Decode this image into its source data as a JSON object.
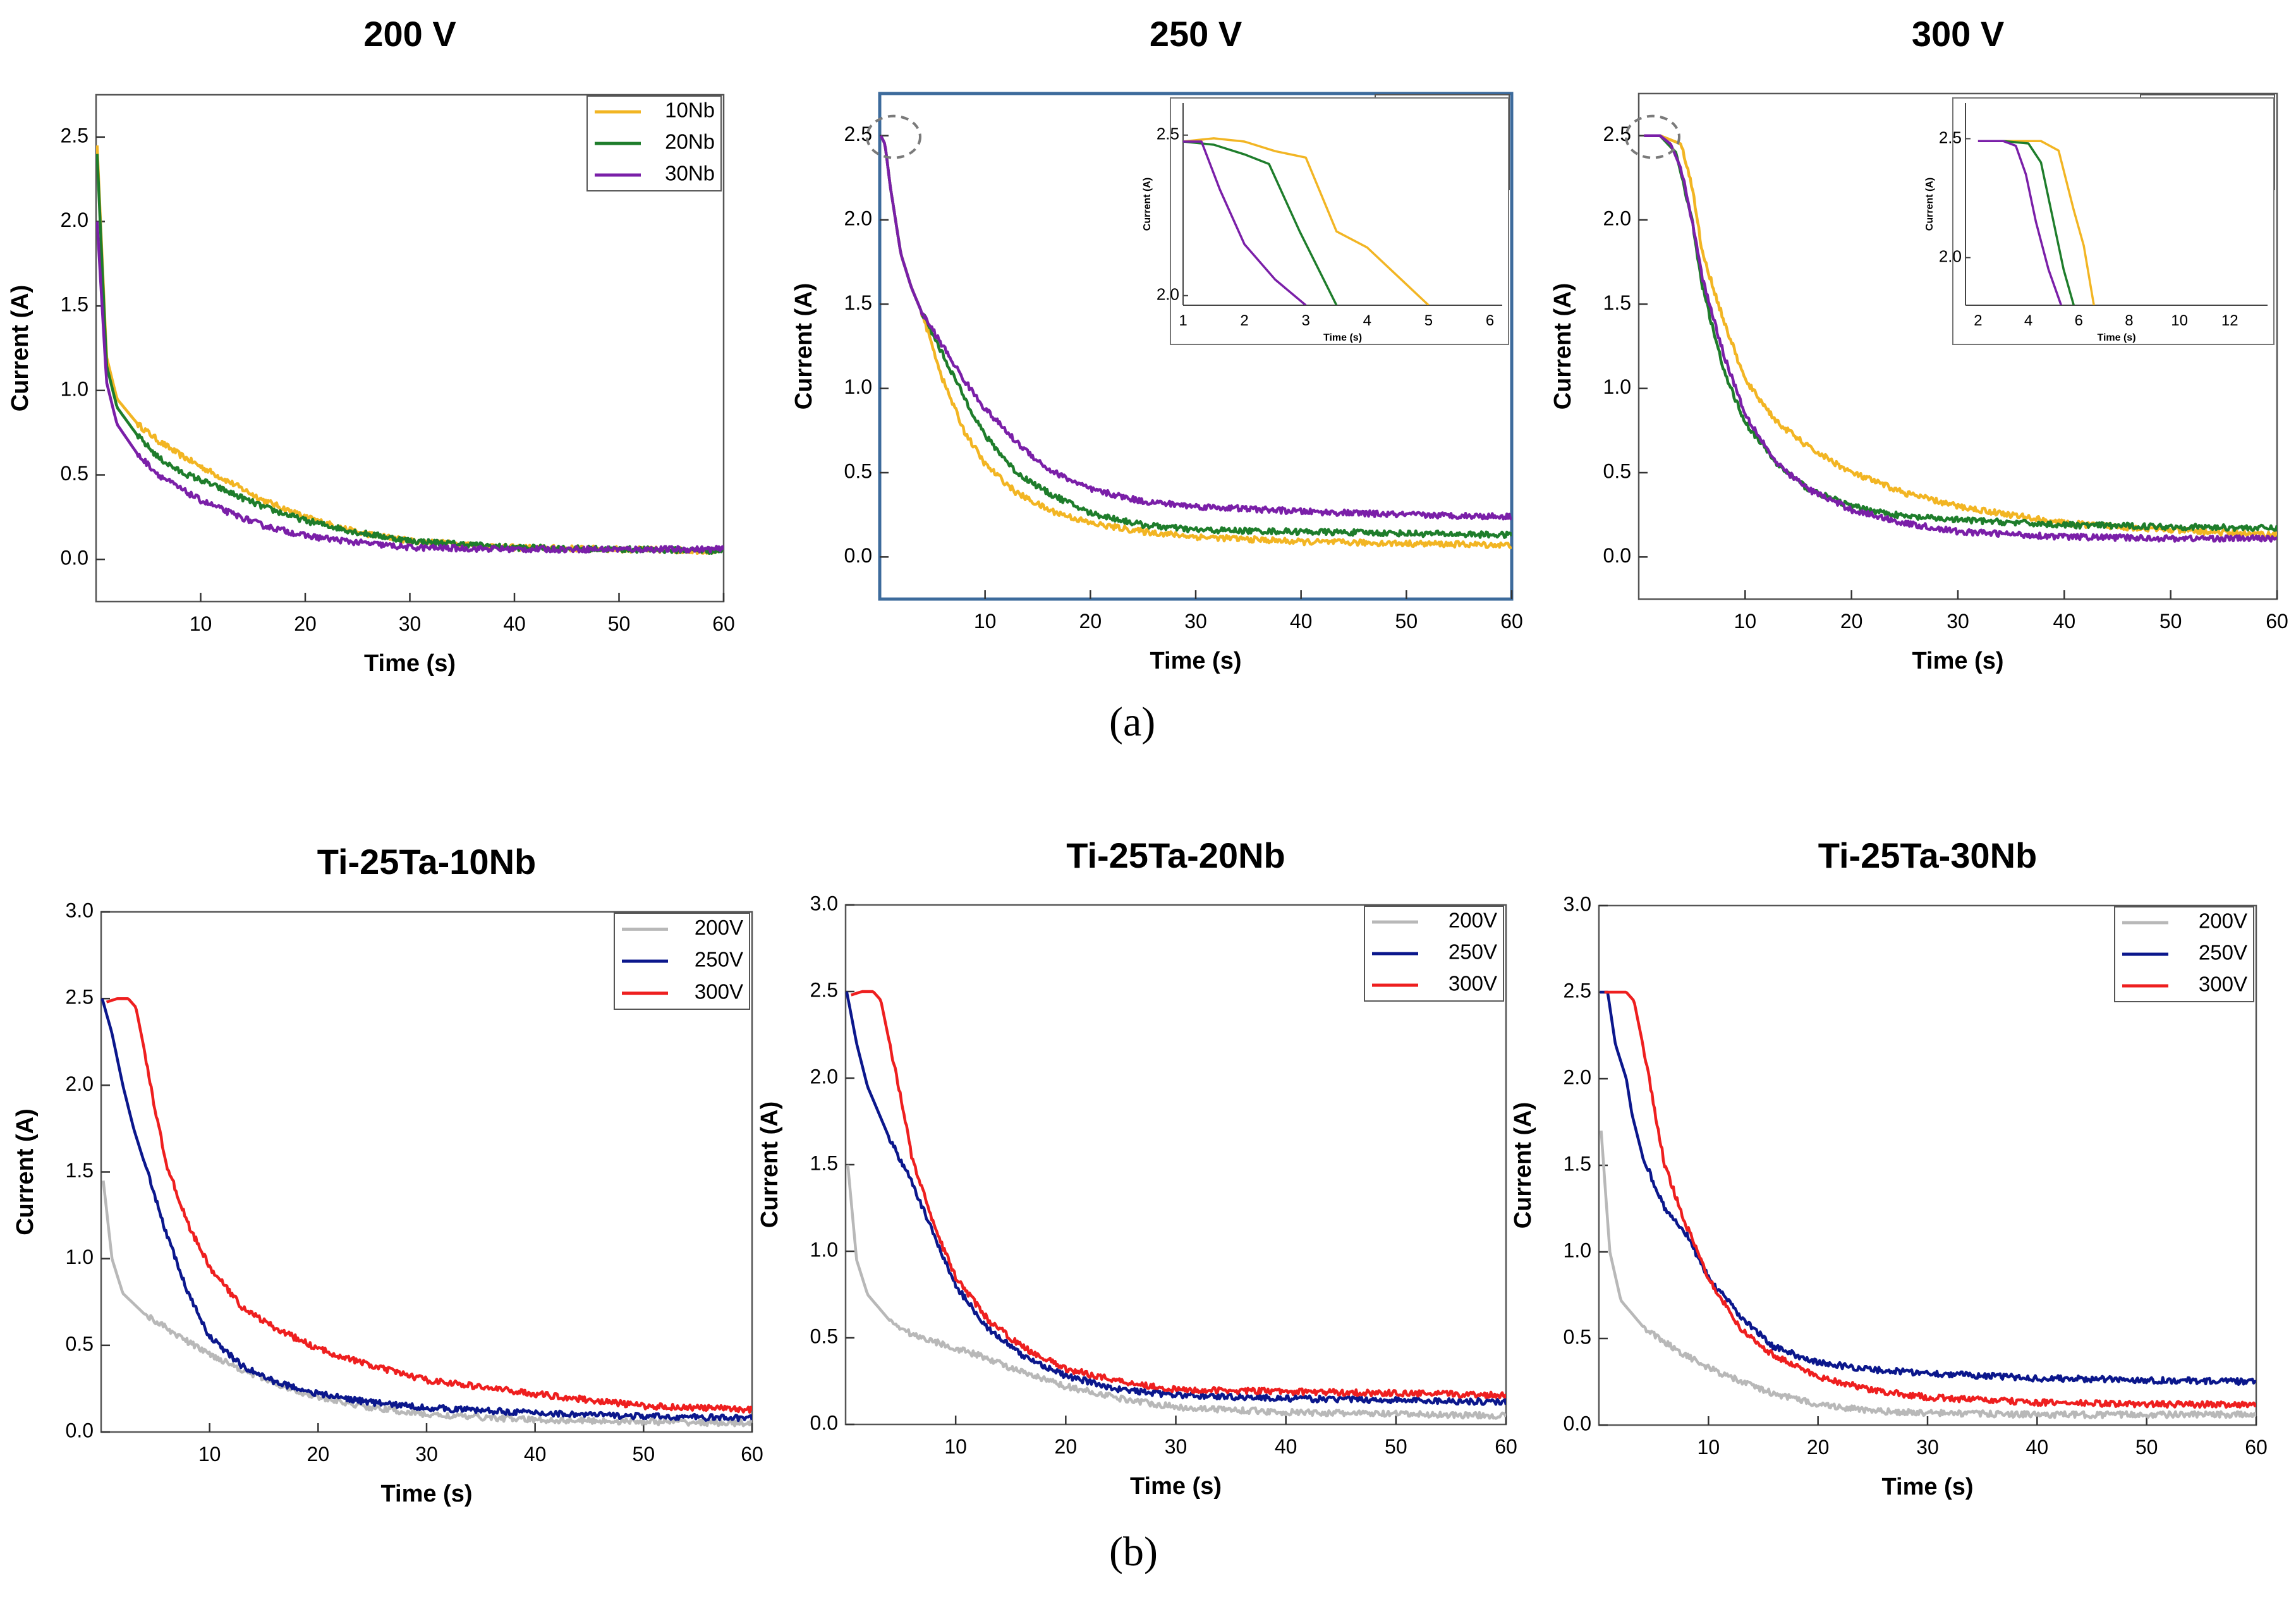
{
  "figure": {
    "label_a": "(a)",
    "label_b": "(b)"
  },
  "colors": {
    "10Nb": "#f2b523",
    "20Nb": "#1e7d2b",
    "30Nb": "#7a1fa8",
    "200V": "#b8b8b8",
    "250V": "#0b178c",
    "300V": "#ee1f1f",
    "frame": "#3d6b9c",
    "highlight": "#7a7a7a"
  },
  "chart_data": [
    {
      "type": "line",
      "panel": "a",
      "title": "200 V",
      "xlabel": "Time (s)",
      "ylabel": "Current (A)",
      "xlim": [
        0,
        60
      ],
      "ylim": [
        -0.25,
        2.75
      ],
      "xticks": [
        10,
        20,
        30,
        40,
        50,
        60
      ],
      "yticks": [
        0,
        0.5,
        1,
        1.5,
        2,
        2.5
      ],
      "ytick_labels": [
        "0.0",
        "0.5",
        "1.0",
        "1.5",
        "2.0",
        "2.5"
      ],
      "legend_position": "top-right",
      "legend_bold": false,
      "series": [
        {
          "name": "10Nb",
          "color_key": "10Nb",
          "x": [
            0.1,
            1,
            2,
            4,
            6,
            8,
            10,
            13,
            16,
            20,
            25,
            30,
            40,
            50,
            60
          ],
          "y": [
            2.45,
            1.2,
            0.95,
            0.8,
            0.7,
            0.62,
            0.55,
            0.45,
            0.35,
            0.25,
            0.16,
            0.11,
            0.07,
            0.06,
            0.05
          ]
        },
        {
          "name": "20Nb",
          "color_key": "20Nb",
          "x": [
            0.1,
            1,
            2,
            4,
            6,
            8,
            10,
            13,
            16,
            20,
            25,
            30,
            40,
            50,
            60
          ],
          "y": [
            2.4,
            1.15,
            0.9,
            0.73,
            0.6,
            0.52,
            0.47,
            0.39,
            0.31,
            0.23,
            0.16,
            0.11,
            0.07,
            0.06,
            0.05
          ]
        },
        {
          "name": "30Nb",
          "color_key": "30Nb",
          "x": [
            0.1,
            1,
            2,
            4,
            6,
            8,
            10,
            13,
            16,
            20,
            25,
            30,
            40,
            50,
            60
          ],
          "y": [
            2.0,
            1.05,
            0.8,
            0.62,
            0.5,
            0.42,
            0.35,
            0.27,
            0.2,
            0.14,
            0.1,
            0.07,
            0.06,
            0.06,
            0.06
          ]
        }
      ]
    },
    {
      "type": "line",
      "panel": "a",
      "title": "250 V",
      "xlabel": "Time (s)",
      "ylabel": "Current (A)",
      "xlim": [
        0,
        60
      ],
      "ylim": [
        -0.25,
        2.75
      ],
      "xticks": [
        10,
        20,
        30,
        40,
        50,
        60
      ],
      "yticks": [
        0,
        0.5,
        1,
        1.5,
        2,
        2.5
      ],
      "ytick_labels": [
        "0.0",
        "0.5",
        "1.0",
        "1.5",
        "2.0",
        "2.5"
      ],
      "legend_position": "top-right",
      "legend_bold": true,
      "framed": true,
      "series": [
        {
          "name": "10Nb",
          "color_key": "10Nb",
          "x": [
            0.1,
            0.5,
            1,
            2,
            3,
            4,
            6,
            8,
            10,
            13,
            16,
            20,
            25,
            30,
            40,
            50,
            60
          ],
          "y": [
            2.5,
            2.45,
            2.2,
            1.8,
            1.6,
            1.45,
            1.05,
            0.75,
            0.55,
            0.38,
            0.28,
            0.2,
            0.15,
            0.12,
            0.09,
            0.08,
            0.07
          ]
        },
        {
          "name": "20Nb",
          "color_key": "20Nb",
          "x": [
            0.1,
            0.5,
            1,
            2,
            3,
            4,
            6,
            8,
            10,
            13,
            16,
            20,
            25,
            30,
            40,
            50,
            60
          ],
          "y": [
            2.5,
            2.45,
            2.2,
            1.8,
            1.6,
            1.45,
            1.2,
            0.95,
            0.72,
            0.5,
            0.38,
            0.26,
            0.19,
            0.16,
            0.15,
            0.14,
            0.13
          ]
        },
        {
          "name": "30Nb",
          "color_key": "30Nb",
          "x": [
            0.1,
            0.5,
            1,
            2,
            3,
            4,
            6,
            8,
            10,
            13,
            16,
            20,
            25,
            30,
            40,
            50,
            60
          ],
          "y": [
            2.5,
            2.45,
            2.2,
            1.8,
            1.6,
            1.45,
            1.25,
            1.05,
            0.88,
            0.68,
            0.52,
            0.4,
            0.33,
            0.3,
            0.27,
            0.25,
            0.24
          ]
        }
      ],
      "inset": {
        "xlabel": "Time (s)",
        "ylabel": "Current (A)",
        "xlim": [
          1,
          6.2
        ],
        "ylim": [
          1.97,
          2.6
        ],
        "xticks": [
          1,
          2,
          3,
          4,
          5,
          6
        ],
        "yticks": [
          2.0,
          2.5
        ],
        "ytick_labels": [
          "2.0",
          "2.5"
        ],
        "series": [
          {
            "name": "10Nb",
            "color_key": "10Nb",
            "x": [
              1,
              1.5,
              2,
              2.5,
              3,
              3.5,
              4,
              4.5,
              5
            ],
            "y": [
              2.48,
              2.49,
              2.48,
              2.45,
              2.43,
              2.2,
              2.15,
              2.06,
              1.97
            ]
          },
          {
            "name": "20Nb",
            "color_key": "20Nb",
            "x": [
              1,
              1.5,
              2,
              2.4,
              2.9,
              3.5
            ],
            "y": [
              2.48,
              2.47,
              2.44,
              2.41,
              2.2,
              1.97
            ]
          },
          {
            "name": "30Nb",
            "color_key": "30Nb",
            "x": [
              1,
              1.3,
              1.6,
              2,
              2.5,
              3
            ],
            "y": [
              2.48,
              2.48,
              2.33,
              2.16,
              2.05,
              1.97
            ]
          }
        ]
      }
    },
    {
      "type": "line",
      "panel": "a",
      "title": "300 V",
      "xlabel": "Time (s)",
      "ylabel": "Current (A)",
      "xlim": [
        0,
        60
      ],
      "ylim": [
        -0.25,
        2.75
      ],
      "xticks": [
        10,
        20,
        30,
        40,
        50,
        60
      ],
      "yticks": [
        0,
        0.5,
        1,
        1.5,
        2,
        2.5
      ],
      "ytick_labels": [
        "0.0",
        "0.5",
        "1.0",
        "1.5",
        "2.0",
        "2.5"
      ],
      "legend_position": "top-right",
      "legend_bold": false,
      "series": [
        {
          "name": "10Nb",
          "color_key": "10Nb",
          "x": [
            0.5,
            2,
            4,
            5,
            6,
            8,
            10,
            13,
            16,
            20,
            25,
            30,
            40,
            50,
            60
          ],
          "y": [
            2.5,
            2.5,
            2.45,
            2.2,
            1.8,
            1.4,
            1.05,
            0.8,
            0.65,
            0.5,
            0.38,
            0.3,
            0.2,
            0.16,
            0.13
          ]
        },
        {
          "name": "20Nb",
          "color_key": "20Nb",
          "x": [
            0.5,
            2,
            3.5,
            5,
            6,
            8,
            10,
            13,
            16,
            20,
            25,
            30,
            40,
            50,
            60
          ],
          "y": [
            2.5,
            2.5,
            2.4,
            2.0,
            1.6,
            1.1,
            0.8,
            0.55,
            0.4,
            0.3,
            0.24,
            0.22,
            0.19,
            0.18,
            0.17
          ]
        },
        {
          "name": "30Nb",
          "color_key": "30Nb",
          "x": [
            0.5,
            2,
            3,
            4,
            5,
            6,
            8,
            10,
            13,
            16,
            20,
            25,
            30,
            40,
            50,
            60
          ],
          "y": [
            2.5,
            2.5,
            2.45,
            2.3,
            2.0,
            1.65,
            1.2,
            0.85,
            0.55,
            0.4,
            0.28,
            0.2,
            0.15,
            0.12,
            0.11,
            0.11
          ]
        }
      ],
      "inset": {
        "xlabel": "Time (s)",
        "ylabel": "Current (A)",
        "xlim": [
          1.5,
          13.5
        ],
        "ylim": [
          1.8,
          2.65
        ],
        "xticks": [
          2,
          4,
          6,
          8,
          10,
          12
        ],
        "yticks": [
          2.0,
          2.5
        ],
        "ytick_labels": [
          "2.0",
          "2.5"
        ],
        "series": [
          {
            "name": "10Nb",
            "color_key": "10Nb",
            "x": [
              2,
              3,
              4.5,
              5.2,
              5.8,
              6.2,
              6.6
            ],
            "y": [
              2.49,
              2.49,
              2.49,
              2.45,
              2.2,
              2.05,
              1.8
            ]
          },
          {
            "name": "20Nb",
            "color_key": "20Nb",
            "x": [
              2,
              3,
              4,
              4.5,
              5,
              5.4,
              5.8
            ],
            "y": [
              2.49,
              2.49,
              2.48,
              2.4,
              2.15,
              1.95,
              1.8
            ]
          },
          {
            "name": "30Nb",
            "color_key": "30Nb",
            "x": [
              2,
              3,
              3.5,
              3.9,
              4.3,
              4.8,
              5.3
            ],
            "y": [
              2.49,
              2.49,
              2.47,
              2.35,
              2.15,
              1.95,
              1.8
            ]
          }
        ]
      }
    },
    {
      "type": "line",
      "panel": "b",
      "title": "Ti-25Ta-10Nb",
      "xlabel": "Time (s)",
      "ylabel": "Current (A)",
      "xlim": [
        0,
        60
      ],
      "ylim": [
        0,
        3.0
      ],
      "xticks": [
        10,
        20,
        30,
        40,
        50,
        60
      ],
      "yticks": [
        0,
        0.5,
        1,
        1.5,
        2,
        2.5,
        3
      ],
      "ytick_labels": [
        "0.0",
        "0.5",
        "1.0",
        "1.5",
        "2.0",
        "2.5",
        "3.0"
      ],
      "legend_position": "top-right",
      "legend_bold": false,
      "series": [
        {
          "name": "200V",
          "color_key": "200V",
          "x": [
            0.2,
            1,
            2,
            4,
            6,
            8,
            10,
            13,
            16,
            20,
            25,
            30,
            40,
            50,
            60
          ],
          "y": [
            1.45,
            1.0,
            0.8,
            0.68,
            0.6,
            0.52,
            0.45,
            0.36,
            0.28,
            0.2,
            0.14,
            0.1,
            0.07,
            0.06,
            0.05
          ]
        },
        {
          "name": "250V",
          "color_key": "250V",
          "x": [
            0.1,
            1,
            2,
            3,
            4,
            6,
            8,
            10,
            13,
            16,
            20,
            25,
            30,
            40,
            50,
            60
          ],
          "y": [
            2.5,
            2.3,
            2.0,
            1.75,
            1.55,
            1.15,
            0.8,
            0.55,
            0.38,
            0.29,
            0.22,
            0.17,
            0.14,
            0.11,
            0.09,
            0.08
          ]
        },
        {
          "name": "300V",
          "color_key": "300V",
          "x": [
            0.5,
            1.5,
            2.5,
            3.2,
            4,
            5,
            6,
            8,
            10,
            13,
            16,
            20,
            25,
            30,
            40,
            50,
            60
          ],
          "y": [
            2.48,
            2.5,
            2.5,
            2.45,
            2.2,
            1.85,
            1.55,
            1.2,
            0.95,
            0.72,
            0.6,
            0.48,
            0.38,
            0.3,
            0.22,
            0.15,
            0.13
          ]
        }
      ]
    },
    {
      "type": "line",
      "panel": "b",
      "title": "Ti-25Ta-20Nb",
      "xlabel": "Time (s)",
      "ylabel": "Current (A)",
      "xlim": [
        0,
        60
      ],
      "ylim": [
        0,
        3.0
      ],
      "xticks": [
        10,
        20,
        30,
        40,
        50,
        60
      ],
      "yticks": [
        0,
        0.5,
        1,
        1.5,
        2,
        2.5,
        3
      ],
      "ytick_labels": [
        "0.0",
        "0.5",
        "1.0",
        "1.5",
        "2.0",
        "2.5",
        "3.0"
      ],
      "legend_position": "top-right",
      "legend_bold": false,
      "series": [
        {
          "name": "200V",
          "color_key": "200V",
          "x": [
            0.2,
            1,
            2,
            4,
            6,
            8,
            10,
            13,
            16,
            20,
            25,
            30,
            40,
            50,
            60
          ],
          "y": [
            1.5,
            0.95,
            0.75,
            0.6,
            0.52,
            0.48,
            0.44,
            0.38,
            0.3,
            0.22,
            0.15,
            0.1,
            0.07,
            0.06,
            0.05
          ]
        },
        {
          "name": "250V",
          "color_key": "250V",
          "x": [
            0.1,
            1,
            2,
            3,
            4,
            6,
            8,
            10,
            13,
            16,
            20,
            25,
            30,
            40,
            50,
            60
          ],
          "y": [
            2.5,
            2.2,
            1.95,
            1.8,
            1.65,
            1.4,
            1.1,
            0.8,
            0.55,
            0.4,
            0.28,
            0.2,
            0.17,
            0.15,
            0.14,
            0.13
          ]
        },
        {
          "name": "300V",
          "color_key": "300V",
          "x": [
            0.5,
            1.5,
            2.5,
            3.2,
            4,
            5,
            6,
            8,
            10,
            13,
            16,
            20,
            25,
            30,
            40,
            50,
            60
          ],
          "y": [
            2.48,
            2.5,
            2.5,
            2.45,
            2.2,
            1.9,
            1.55,
            1.15,
            0.85,
            0.6,
            0.45,
            0.32,
            0.25,
            0.2,
            0.19,
            0.18,
            0.17
          ]
        }
      ]
    },
    {
      "type": "line",
      "panel": "b",
      "title": "Ti-25Ta-30Nb",
      "xlabel": "Time (s)",
      "ylabel": "Current (A)",
      "xlim": [
        0,
        60
      ],
      "ylim": [
        0,
        3.0
      ],
      "xticks": [
        10,
        20,
        30,
        40,
        50,
        60
      ],
      "yticks": [
        0,
        0.5,
        1,
        1.5,
        2,
        2.5,
        3
      ],
      "ytick_labels": [
        "0.0",
        "0.5",
        "1.0",
        "1.5",
        "2.0",
        "2.5",
        "3.0"
      ],
      "legend_position": "top-right",
      "legend_bold": false,
      "series": [
        {
          "name": "200V",
          "color_key": "200V",
          "x": [
            0.2,
            1,
            2,
            4,
            6,
            8,
            10,
            13,
            16,
            20,
            25,
            30,
            40,
            50,
            60
          ],
          "y": [
            1.7,
            1.0,
            0.72,
            0.57,
            0.48,
            0.4,
            0.33,
            0.25,
            0.18,
            0.12,
            0.08,
            0.07,
            0.06,
            0.06,
            0.06
          ]
        },
        {
          "name": "250V",
          "color_key": "250V",
          "x": [
            0.1,
            0.8,
            1.5,
            2.5,
            3,
            4,
            5,
            6,
            8,
            10,
            13,
            16,
            20,
            25,
            30,
            40,
            50,
            60
          ],
          "y": [
            2.5,
            2.5,
            2.2,
            2.0,
            1.8,
            1.55,
            1.4,
            1.25,
            1.1,
            0.85,
            0.62,
            0.45,
            0.36,
            0.32,
            0.3,
            0.27,
            0.26,
            0.25
          ]
        },
        {
          "name": "300V",
          "color_key": "300V",
          "x": [
            0.5,
            1.5,
            2.5,
            3.2,
            4,
            5,
            6,
            8,
            10,
            13,
            16,
            20,
            25,
            30,
            40,
            50,
            60
          ],
          "y": [
            2.5,
            2.5,
            2.5,
            2.45,
            2.2,
            1.85,
            1.5,
            1.15,
            0.85,
            0.55,
            0.4,
            0.28,
            0.2,
            0.16,
            0.13,
            0.12,
            0.12
          ]
        }
      ]
    }
  ]
}
